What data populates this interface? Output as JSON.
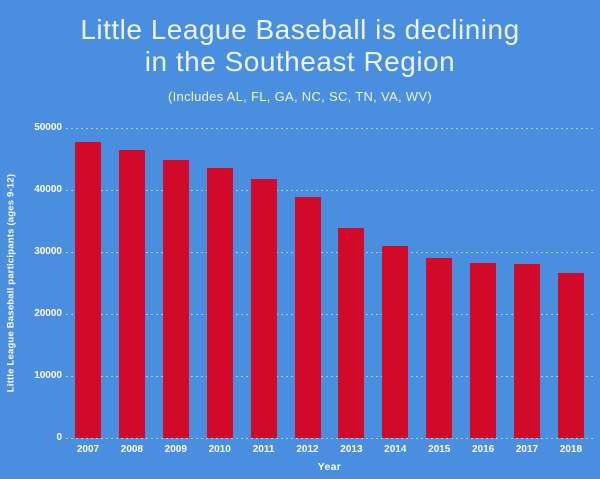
{
  "page": {
    "background_color": "#4a8ee0",
    "bar_color": "#d00a28",
    "text_color": "#ffffff"
  },
  "header": {
    "title_line1": "Little League Baseball is declining",
    "title_line2": "in the Southeast Region",
    "subtitle": "(Includes AL, FL, GA, NC, SC, TN, VA, WV)"
  },
  "chart_data": {
    "type": "bar",
    "title": "Little League Baseball is declining in the Southeast Region",
    "subtitle": "(Includes AL, FL, GA, NC, SC, TN, VA, WV)",
    "categories": [
      "2007",
      "2008",
      "2009",
      "2010",
      "2011",
      "2012",
      "2013",
      "2014",
      "2015",
      "2016",
      "2017",
      "2018"
    ],
    "values": [
      47800,
      46500,
      44800,
      43500,
      41700,
      38900,
      33900,
      30900,
      29100,
      28200,
      28000,
      26600
    ],
    "xlabel": "Year",
    "ylabel": "Little League Baseball participants (ages 9-12)",
    "ylim": [
      0,
      50000
    ],
    "yticks": [
      0,
      10000,
      20000,
      30000,
      40000,
      50000
    ],
    "ytick_labels": [
      "0",
      "10000",
      "20000",
      "30000",
      "40000",
      "50000"
    ],
    "grid": "horizontal-dashed",
    "legend": "none"
  }
}
